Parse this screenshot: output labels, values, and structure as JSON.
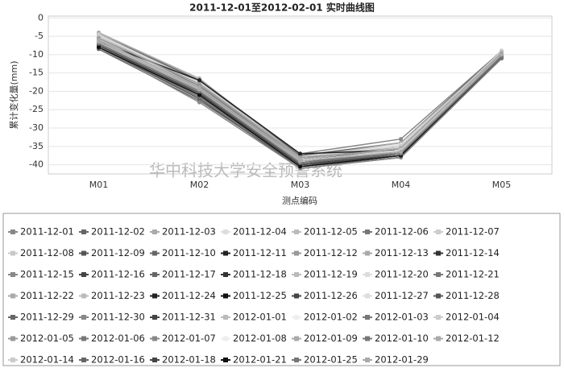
{
  "chart_data": {
    "type": "line",
    "title": "2011-12-01至2012-02-01 实时曲线图",
    "x_label": "测点编码",
    "y_label": "累计变化量(mm)",
    "watermark": "华中科技大学安全预警系统",
    "categories": [
      "M01",
      "M02",
      "M03",
      "M04",
      "M05"
    ],
    "ylim": [
      -42.5,
      0.5
    ],
    "yticks": [
      0,
      -5,
      -10,
      -15,
      -20,
      -25,
      -30,
      -35,
      -40
    ],
    "grid": true,
    "series": [
      {
        "name": "2011-12-01",
        "color": "#888888",
        "values": [
          -4,
          -17,
          -37,
          -33,
          -9
        ]
      },
      {
        "name": "2011-12-02",
        "color": "#666666",
        "values": [
          -4.5,
          -17,
          -37.5,
          -34,
          -9
        ]
      },
      {
        "name": "2011-12-03",
        "color": "#aaaaaa",
        "values": [
          -4,
          -16.5,
          -38,
          -34,
          -9.5
        ]
      },
      {
        "name": "2011-12-04",
        "color": "#dddddd",
        "values": [
          -5,
          -18,
          -38,
          -34.5,
          -9.5
        ]
      },
      {
        "name": "2011-12-05",
        "color": "#bbbbbb",
        "values": [
          -5,
          -18,
          -38.5,
          -35,
          -9.5
        ]
      },
      {
        "name": "2011-12-06",
        "color": "#777777",
        "values": [
          -5.5,
          -18.5,
          -38.5,
          -35,
          -10
        ]
      },
      {
        "name": "2011-12-07",
        "color": "#cccccc",
        "values": [
          -4.5,
          -17.5,
          -38,
          -35,
          -9
        ]
      },
      {
        "name": "2011-12-08",
        "color": "#c8c8c8",
        "values": [
          -5,
          -19,
          -39,
          -35.5,
          -10
        ]
      },
      {
        "name": "2011-12-09",
        "color": "#555555",
        "values": [
          -6,
          -19,
          -39,
          -35.5,
          -10
        ]
      },
      {
        "name": "2011-12-10",
        "color": "#666666",
        "values": [
          -6,
          -19.5,
          -39,
          -36,
          -10
        ]
      },
      {
        "name": "2011-12-11",
        "color": "#222222",
        "values": [
          -6.5,
          -17,
          -37,
          -36,
          -10.5
        ]
      },
      {
        "name": "2011-12-12",
        "color": "#999999",
        "values": [
          -5.5,
          -18,
          -38,
          -36,
          -10
        ]
      },
      {
        "name": "2011-12-13",
        "color": "#aaaaaa",
        "values": [
          -6,
          -20,
          -39.5,
          -36,
          -10
        ]
      },
      {
        "name": "2011-12-14",
        "color": "#333333",
        "values": [
          -6.5,
          -20,
          -39.5,
          -36.5,
          -10.5
        ]
      },
      {
        "name": "2011-12-15",
        "color": "#888888",
        "values": [
          -7,
          -20.5,
          -40,
          -36.5,
          -10.5
        ]
      },
      {
        "name": "2011-12-16",
        "color": "#444444",
        "values": [
          -7,
          -21,
          -40,
          -37,
          -10.5
        ]
      },
      {
        "name": "2011-12-17",
        "color": "#666666",
        "values": [
          -6,
          -19,
          -39,
          -37,
          -10
        ]
      },
      {
        "name": "2011-12-18",
        "color": "#333333",
        "values": [
          -7.5,
          -21,
          -40.5,
          -37,
          -11
        ]
      },
      {
        "name": "2011-12-19",
        "color": "#bbbbbb",
        "values": [
          -6.5,
          -20,
          -39.5,
          -37,
          -10.5
        ]
      },
      {
        "name": "2011-12-20",
        "color": "#dddddd",
        "values": [
          -7,
          -21.5,
          -40,
          -37.5,
          -10.5
        ]
      },
      {
        "name": "2011-12-21",
        "color": "#777777",
        "values": [
          -7.5,
          -21,
          -40,
          -37.5,
          -11
        ]
      },
      {
        "name": "2011-12-22",
        "color": "#aaaaaa",
        "values": [
          -8,
          -22,
          -40.5,
          -37.5,
          -11
        ]
      },
      {
        "name": "2011-12-23",
        "color": "#bbbbbb",
        "values": [
          -7,
          -20,
          -39,
          -36,
          -10
        ]
      },
      {
        "name": "2011-12-24",
        "color": "#222222",
        "values": [
          -7.5,
          -20.5,
          -40,
          -37,
          -10.5
        ]
      },
      {
        "name": "2011-12-25",
        "color": "#111111",
        "values": [
          -6.5,
          -19.5,
          -39.5,
          -37,
          -10.5
        ]
      },
      {
        "name": "2011-12-26",
        "color": "#444444",
        "values": [
          -8,
          -21.5,
          -40.5,
          -38,
          -11
        ]
      },
      {
        "name": "2011-12-27",
        "color": "#dddddd",
        "values": [
          -7.5,
          -22,
          -41,
          -38,
          -11
        ]
      },
      {
        "name": "2011-12-28",
        "color": "#555555",
        "values": [
          -8,
          -22,
          -41,
          -38,
          -11
        ]
      },
      {
        "name": "2011-12-29",
        "color": "#666666",
        "values": [
          -8.5,
          -22.5,
          -40.5,
          -37.5,
          -11
        ]
      },
      {
        "name": "2011-12-30",
        "color": "#888888",
        "values": [
          -8,
          -23,
          -41,
          -38,
          -11
        ]
      },
      {
        "name": "2011-12-31",
        "color": "#444444",
        "values": [
          -7,
          -20.5,
          -40,
          -37.5,
          -10.5
        ]
      },
      {
        "name": "2012-01-01",
        "color": "#bbbbbb",
        "values": [
          -7.5,
          -21,
          -40.5,
          -37.5,
          -10.5
        ]
      },
      {
        "name": "2012-01-02",
        "color": "#eeeeee",
        "values": [
          -6.5,
          -20,
          -39,
          -36,
          -10
        ]
      },
      {
        "name": "2012-01-03",
        "color": "#777777",
        "values": [
          -7,
          -20.5,
          -39.5,
          -36.5,
          -10.5
        ]
      },
      {
        "name": "2012-01-04",
        "color": "#cccccc",
        "values": [
          -6,
          -19.5,
          -39,
          -36,
          -10
        ]
      },
      {
        "name": "2012-01-05",
        "color": "#999999",
        "values": [
          -7.5,
          -21,
          -40,
          -37,
          -10.5
        ]
      },
      {
        "name": "2012-01-06",
        "color": "#777777",
        "values": [
          -8,
          -21.5,
          -40.5,
          -37.5,
          -11
        ]
      },
      {
        "name": "2012-01-07",
        "color": "#888888",
        "values": [
          -7,
          -20,
          -39.5,
          -36.5,
          -10
        ]
      },
      {
        "name": "2012-01-08",
        "color": "#eeeeee",
        "values": [
          -6.5,
          -19.5,
          -39,
          -36,
          -10
        ]
      },
      {
        "name": "2012-01-09",
        "color": "#aaaaaa",
        "values": [
          -7,
          -20.5,
          -40,
          -37,
          -10.5
        ]
      },
      {
        "name": "2012-01-10",
        "color": "#777777",
        "values": [
          -7.5,
          -21,
          -40,
          -37,
          -10.5
        ]
      },
      {
        "name": "2012-01-12",
        "color": "#aaaaaa",
        "values": [
          -6,
          -19,
          -38.5,
          -35.5,
          -9.5
        ]
      },
      {
        "name": "2012-01-14",
        "color": "#cccccc",
        "values": [
          -6.5,
          -19.5,
          -39,
          -36,
          -10
        ]
      },
      {
        "name": "2012-01-16",
        "color": "#666666",
        "values": [
          -7,
          -20,
          -39.5,
          -36.5,
          -10
        ]
      },
      {
        "name": "2012-01-18",
        "color": "#444444",
        "values": [
          -7.5,
          -20.5,
          -40,
          -37,
          -10.5
        ]
      },
      {
        "name": "2012-01-21",
        "color": "#111111",
        "values": [
          -8,
          -21,
          -40.5,
          -37.5,
          -10.5
        ]
      },
      {
        "name": "2012-01-25",
        "color": "#777777",
        "values": [
          -7,
          -20,
          -39.5,
          -37,
          -10.5
        ]
      },
      {
        "name": "2012-01-29",
        "color": "#aaaaaa",
        "values": [
          -6.5,
          -19.5,
          -39,
          -36.5,
          -10
        ]
      }
    ]
  }
}
